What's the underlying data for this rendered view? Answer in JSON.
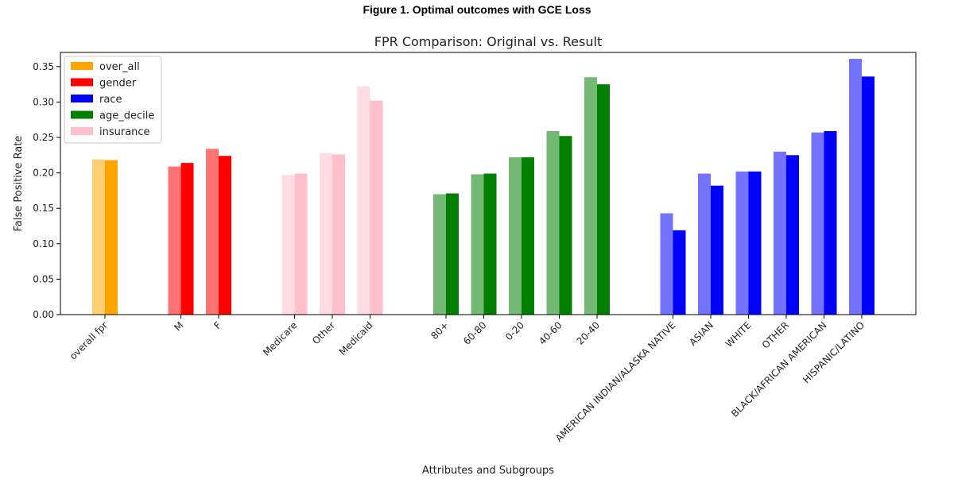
{
  "caption": "Figure 1. Optimal outcomes with GCE Loss",
  "chart_data": {
    "type": "bar",
    "title": "FPR Comparison: Original vs. Result",
    "xlabel": "Attributes and Subgroups",
    "ylabel": "False Positive Rate",
    "ylim": [
      0,
      0.37
    ],
    "yticks": [
      "0.00",
      "0.05",
      "0.10",
      "0.15",
      "0.20",
      "0.25",
      "0.30",
      "0.35"
    ],
    "legend_position": "top-left",
    "legend": [
      {
        "name": "over_all",
        "color": "#FFA500"
      },
      {
        "name": "gender",
        "color": "#FF0000"
      },
      {
        "name": "race",
        "color": "#0000FF"
      },
      {
        "name": "age_decile",
        "color": "#008000"
      },
      {
        "name": "insurance",
        "color": "#FFC0CB"
      }
    ],
    "bar_pair": [
      "Original",
      "Result"
    ],
    "groups": [
      {
        "attribute": "over_all",
        "color": "#FFA500",
        "categories": [
          {
            "label": "overall fpr",
            "original": 0.219,
            "result": 0.218
          }
        ]
      },
      {
        "attribute": "gender",
        "color": "#FF0000",
        "categories": [
          {
            "label": "M",
            "original": 0.209,
            "result": 0.214
          },
          {
            "label": "F",
            "original": 0.234,
            "result": 0.224
          }
        ]
      },
      {
        "attribute": "insurance",
        "color": "#FFC0CB",
        "categories": [
          {
            "label": "Medicare",
            "original": 0.197,
            "result": 0.199
          },
          {
            "label": "Other",
            "original": 0.228,
            "result": 0.226
          },
          {
            "label": "Medicaid",
            "original": 0.322,
            "result": 0.302
          }
        ]
      },
      {
        "attribute": "age_decile",
        "color": "#008000",
        "categories": [
          {
            "label": "80+",
            "original": 0.17,
            "result": 0.171
          },
          {
            "label": "60-80",
            "original": 0.198,
            "result": 0.199
          },
          {
            "label": "0-20",
            "original": 0.222,
            "result": 0.222
          },
          {
            "label": "40-60",
            "original": 0.259,
            "result": 0.252
          },
          {
            "label": "20-40",
            "original": 0.335,
            "result": 0.325
          }
        ]
      },
      {
        "attribute": "race",
        "color": "#0000FF",
        "categories": [
          {
            "label": "AMERICAN INDIAN/ALASKA NATIVE",
            "original": 0.143,
            "result": 0.119
          },
          {
            "label": "ASIAN",
            "original": 0.199,
            "result": 0.182
          },
          {
            "label": "WHITE",
            "original": 0.202,
            "result": 0.202
          },
          {
            "label": "OTHER",
            "original": 0.23,
            "result": 0.225
          },
          {
            "label": "BLACK/AFRICAN AMERICAN",
            "original": 0.257,
            "result": 0.259
          },
          {
            "label": "HISPANIC/LATINO",
            "original": 0.361,
            "result": 0.336
          }
        ]
      }
    ]
  }
}
